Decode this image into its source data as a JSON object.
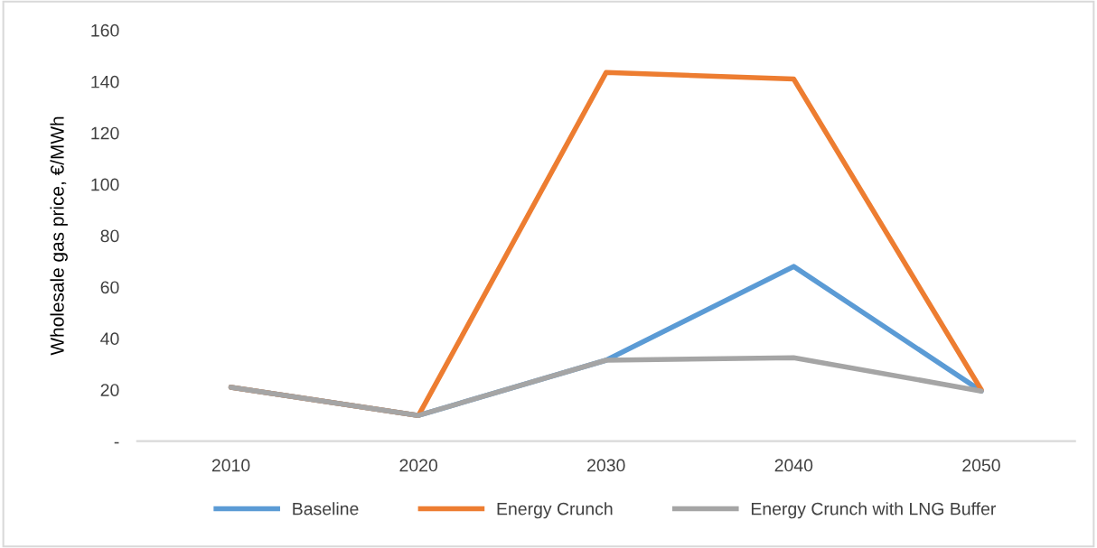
{
  "chart_data": {
    "type": "line",
    "ylabel": "Wholesale gas price, €/MWh",
    "categories": [
      "2010",
      "2020",
      "2030",
      "2040",
      "2050"
    ],
    "series": [
      {
        "name": "Baseline",
        "color": "#5b9bd5",
        "values": [
          21,
          10,
          31.5,
          68,
          19.5
        ]
      },
      {
        "name": "Energy Crunch",
        "color": "#ed7d31",
        "values": [
          21,
          10,
          143.5,
          141,
          20
        ]
      },
      {
        "name": "Energy Crunch with LNG Buffer",
        "color": "#a5a5a5",
        "values": [
          21,
          10,
          31.5,
          32.5,
          19.5
        ]
      }
    ],
    "ylim": [
      0,
      160
    ],
    "yticks": [
      {
        "value": 0,
        "label": "-"
      },
      20,
      40,
      60,
      80,
      100,
      120,
      140,
      160
    ],
    "grid": false,
    "legend": "bottom",
    "marker": "none",
    "line_style": "solid"
  }
}
